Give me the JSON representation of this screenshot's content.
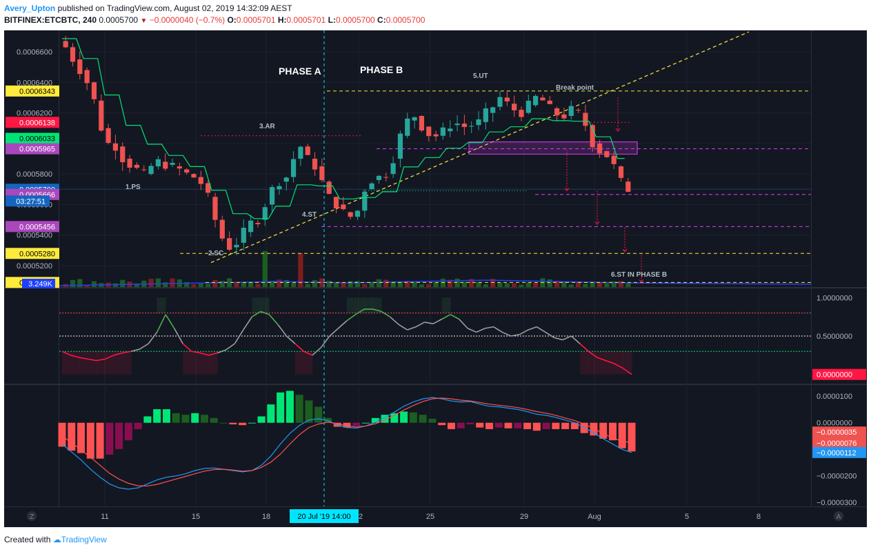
{
  "header": {
    "author": "Avery_Upton",
    "published": "published on TradingView.com, August 02, 2019 14:32:09 AEST",
    "symbol": "BITFINEX:ETCBTC, 240",
    "last": "0.0005700",
    "change": "−0.0000040 (−0.7%)",
    "o_label": "O:",
    "o": "0.0005701",
    "h_label": "H:",
    "h": "0.0005701",
    "l_label": "L:",
    "l": "0.0005700",
    "c_label": "C:",
    "c": "0.0005700"
  },
  "footer": {
    "created_with": "Created with",
    "brand": "TradingView"
  },
  "colors": {
    "background": "#131722",
    "grid": "#1e2230",
    "up": "#26a69a",
    "down": "#ef5350",
    "yellow": "#ffeb3b",
    "red": "#ff1744",
    "purple": "#e040fb",
    "cyan": "#00e5ff",
    "green_line": "#00e676",
    "grey_line": "#9e9e9e"
  },
  "chart_data": [
    {
      "type": "candlestick",
      "title": "",
      "x_ticks": [
        "11",
        "15",
        "18",
        "22",
        "25",
        "29",
        "Aug",
        "5",
        "8"
      ],
      "crosshair_x_label": "20 Jul '19   14:00",
      "y_ticks": [
        "0.0006600",
        "0.0006400",
        "0.0006200",
        "0.0006000",
        "0.0005800",
        "0.0005600",
        "0.0005400",
        "0.0005200"
      ],
      "ylim": [
        0.000506,
        0.000674
      ],
      "price_labels": [
        {
          "value": 0.0006343,
          "text": "0.0006343",
          "color": "#ffeb3b"
        },
        {
          "value": 0.0006138,
          "text": "0.0006138",
          "color": "#ff1744"
        },
        {
          "value": 0.0006033,
          "text": "0.0006033",
          "color": "#00e676"
        },
        {
          "value": 0.0005965,
          "text": "0.0005965",
          "color": "#ab47bc"
        },
        {
          "value": 0.00057,
          "text": "0.0005700",
          "color": "#1565c0"
        },
        {
          "value": 0.0005666,
          "text": "0.0005666",
          "color": "#ab47bc"
        },
        {
          "value": 0.0005456,
          "text": "0.0005456",
          "color": "#ab47bc"
        },
        {
          "value": 0.000528,
          "text": "0.0005280",
          "color": "#ffeb3b"
        },
        {
          "value": 0.000509,
          "text": "0.0005090",
          "color": "#ffeb3b"
        }
      ],
      "countdown_label": "03:27:51",
      "volume_label": "3.249K",
      "annotations": [
        "1.PS",
        "2.SC",
        "3.AR",
        "4.ST",
        "5.UT",
        "6.ST IN PHASE B",
        "PHASE A",
        "PHASE B",
        "Break point"
      ],
      "price_path": [
        0.000663,
        0.000655,
        0.000648,
        0.00064,
        0.000628,
        0.00061,
        0.0006,
        0.000598,
        0.00059,
        0.000586,
        0.000583,
        0.00058,
        0.000585,
        0.000588,
        0.000586,
        0.000585,
        0.000583,
        0.00058,
        0.000578,
        0.000574,
        0.000565,
        0.00055,
        0.000538,
        0.000532,
        0.000535,
        0.000542,
        0.000548,
        0.00055,
        0.00056,
        0.00057,
        0.000575,
        0.000578,
        0.00059,
        0.000598,
        0.00059,
        0.000585,
        0.000575,
        0.000565,
        0.00056,
        0.000555,
        0.000552,
        0.000556,
        0.00057,
        0.000576,
        0.000578,
        0.00058,
        0.00059,
        0.000605,
        0.000615,
        0.000618,
        0.000611,
        0.000606,
        0.000605,
        0.000608,
        0.000612,
        0.000613,
        0.000611,
        0.000612,
        0.000614,
        0.00062,
        0.000624,
        0.00063,
        0.000626,
        0.000622,
        0.00062,
        0.000625,
        0.00063,
        0.000628,
        0.000623,
        0.000619,
        0.000618,
        0.000622,
        0.00062,
        0.000612,
        0.0006,
        0.000595,
        0.000592,
        0.000585,
        0.000575,
        0.00057
      ]
    },
    {
      "type": "line",
      "title": "",
      "y_ticks": [
        "1.0000000",
        "0.5000000",
        "0.0000000"
      ],
      "ylim": [
        -0.12,
        1.12
      ],
      "levels": [
        0.8,
        0.5,
        0.3
      ],
      "current_label": "0.0000000",
      "values": [
        0.3,
        0.25,
        0.22,
        0.2,
        0.18,
        0.2,
        0.25,
        0.28,
        0.3,
        0.33,
        0.4,
        0.55,
        0.78,
        0.6,
        0.4,
        0.3,
        0.28,
        0.25,
        0.28,
        0.32,
        0.4,
        0.58,
        0.75,
        0.82,
        0.78,
        0.65,
        0.5,
        0.4,
        0.3,
        0.25,
        0.35,
        0.5,
        0.6,
        0.7,
        0.78,
        0.85,
        0.85,
        0.82,
        0.75,
        0.65,
        0.58,
        0.62,
        0.68,
        0.66,
        0.72,
        0.78,
        0.72,
        0.6,
        0.55,
        0.6,
        0.62,
        0.55,
        0.5,
        0.52,
        0.58,
        0.62,
        0.55,
        0.48,
        0.45,
        0.5,
        0.4,
        0.3,
        0.22,
        0.18,
        0.14,
        0.08,
        0.0
      ]
    },
    {
      "type": "bar",
      "title": "",
      "y_ticks": [
        "0.0000100",
        "0.0000000",
        "−0.0000200",
        "−0.0000300"
      ],
      "ylim": [
        -3.15e-05,
        1.42e-05
      ],
      "value_labels": [
        {
          "text": "−0.0000035",
          "color": "#ef5350"
        },
        {
          "text": "−0.0000076",
          "color": "#ef5350"
        },
        {
          "text": "−0.0000112",
          "color": "#2196f3"
        }
      ],
      "macd": [
        -8e-06,
        -1.1e-05,
        -1.4e-05,
        -1.75e-05,
        -2.05e-05,
        -2.3e-05,
        -2.45e-05,
        -2.5e-05,
        -2.45e-05,
        -2.3e-05,
        -2.15e-05,
        -2.05e-05,
        -2e-05,
        -1.92e-05,
        -1.8e-05,
        -1.72e-05,
        -1.7e-05,
        -1.75e-05,
        -1.8e-05,
        -1.85e-05,
        -1.8e-05,
        -1.6e-05,
        -1.25e-05,
        -8e-06,
        -4e-06,
        -1e-06,
        1e-06,
        1.5e-06,
        8e-07,
        -8e-07,
        -1.8e-06,
        -2e-06,
        -1.2e-06,
        2e-07,
        2e-06,
        4e-06,
        6.2e-06,
        7.8e-06,
        9e-06,
        9.5e-06,
        9e-06,
        8.2e-06,
        7.8e-06,
        8e-06,
        7e-06,
        6.2e-06,
        6e-06,
        5.5e-06,
        5e-06,
        4.2e-06,
        3.2e-06,
        2.8e-06,
        2e-06,
        1e-06,
        0.0,
        -1.8e-06,
        -3.8e-06,
        -6e-06,
        -8e-06,
        -1e-05,
        -1.12e-05
      ],
      "signal": [
        -5e-06,
        -7.5e-06,
        -1.02e-05,
        -1.3e-05,
        -1.6e-05,
        -1.9e-05,
        -2.12e-05,
        -2.28e-05,
        -2.37e-05,
        -2.38e-05,
        -2.32e-05,
        -2.22e-05,
        -2.12e-05,
        -2.02e-05,
        -1.92e-05,
        -1.82e-05,
        -1.76e-05,
        -1.75e-05,
        -1.78e-05,
        -1.82e-05,
        -1.8e-05,
        -1.68e-05,
        -1.48e-05,
        -1.18e-05,
        -8e-06,
        -4.5e-06,
        -1.8e-06,
        -5e-07,
        2e-07,
        -3e-07,
        -1.2e-06,
        -1.6e-06,
        -1.2e-06,
        -4e-07,
        1e-06,
        2.8e-06,
        4.8e-06,
        6.5e-06,
        8e-06,
        9e-06,
        9.3e-06,
        9e-06,
        8.5e-06,
        8.2e-06,
        7.6e-06,
        7e-06,
        6.6e-06,
        6.2e-06,
        5.7e-06,
        5e-06,
        4.2e-06,
        3.6e-06,
        2.8e-06,
        1.8e-06,
        8e-07,
        -5e-07,
        -2.2e-06,
        -4e-06,
        -5.8e-06,
        -6.8e-06,
        -7.6e-06
      ]
    }
  ]
}
